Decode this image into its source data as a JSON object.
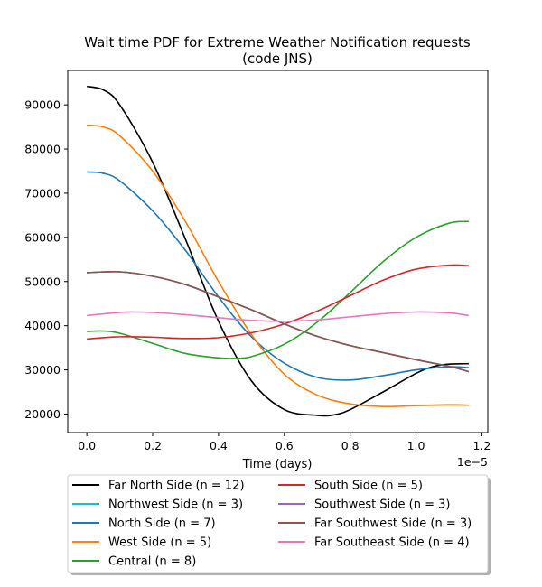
{
  "chart_data": {
    "type": "line",
    "title": "Wait time PDF for Extreme Weather Notification  requests",
    "subtitle": "(code JNS)",
    "xlabel": "Time (days)",
    "ylabel": "",
    "x_offset_text": "1e−5",
    "xlim": [
      -0.058,
      1.218
    ],
    "ylim": [
      15800,
      97800
    ],
    "xticks": [
      0.0,
      0.2,
      0.4,
      0.6,
      0.8,
      1.0,
      1.2
    ],
    "xtick_labels": [
      "0.0",
      "0.2",
      "0.4",
      "0.6",
      "0.8",
      "1.0",
      "1.2"
    ],
    "yticks": [
      20000,
      30000,
      40000,
      50000,
      60000,
      70000,
      80000,
      90000
    ],
    "ytick_labels": [
      "20000",
      "30000",
      "40000",
      "50000",
      "60000",
      "70000",
      "80000",
      "90000"
    ],
    "grid": false,
    "legend_position": "below plot, two columns",
    "series": [
      {
        "name": "Far North Side (n = 12)",
        "color": "#000000",
        "x": [
          0.0,
          0.05,
          0.1,
          0.2,
          0.3,
          0.4,
          0.5,
          0.6,
          0.7,
          0.75,
          0.8,
          0.9,
          1.0,
          1.05,
          1.1,
          1.16
        ],
        "y": [
          94200,
          93400,
          90000,
          77000,
          59500,
          41000,
          27500,
          21000,
          19700,
          19800,
          21000,
          25000,
          29200,
          30700,
          31300,
          31400
        ]
      },
      {
        "name": "Northwest Side (n = 3)",
        "color": "#17becf",
        "x": [
          0.0,
          0.1,
          0.2,
          0.3,
          0.4,
          0.5,
          0.6,
          0.7,
          0.8,
          0.9,
          1.0,
          1.1,
          1.16
        ],
        "y": [
          52000,
          52200,
          51200,
          49300,
          46500,
          43600,
          40400,
          37600,
          35500,
          33900,
          32300,
          30800,
          29600
        ]
      },
      {
        "name": "North Side (n = 7)",
        "color": "#1f77b4",
        "x": [
          0.0,
          0.05,
          0.1,
          0.2,
          0.3,
          0.4,
          0.5,
          0.6,
          0.7,
          0.8,
          0.9,
          1.0,
          1.1,
          1.16
        ],
        "y": [
          74800,
          74500,
          72800,
          66000,
          57000,
          46500,
          37500,
          31500,
          28300,
          27700,
          28700,
          30000,
          30700,
          30500
        ]
      },
      {
        "name": "West Side (n = 5)",
        "color": "#ff7f0e",
        "x": [
          0.0,
          0.05,
          0.1,
          0.2,
          0.3,
          0.4,
          0.5,
          0.6,
          0.7,
          0.8,
          0.9,
          1.0,
          1.1,
          1.16
        ],
        "y": [
          85400,
          85000,
          83000,
          75000,
          63500,
          50000,
          38000,
          29000,
          24300,
          22300,
          21700,
          21900,
          22100,
          22000
        ]
      },
      {
        "name": "Central (n = 8)",
        "color": "#2ca02c",
        "x": [
          0.0,
          0.05,
          0.1,
          0.2,
          0.3,
          0.4,
          0.45,
          0.5,
          0.6,
          0.7,
          0.8,
          0.9,
          1.0,
          1.1,
          1.16
        ],
        "y": [
          38700,
          38800,
          38300,
          36000,
          33700,
          32700,
          32600,
          33000,
          35800,
          40800,
          47500,
          54500,
          60000,
          63200,
          63600
        ]
      },
      {
        "name": "South Side (n = 5)",
        "color": "#d62728",
        "x": [
          0.0,
          0.1,
          0.2,
          0.3,
          0.4,
          0.5,
          0.6,
          0.7,
          0.8,
          0.9,
          1.0,
          1.1,
          1.16
        ],
        "y": [
          37000,
          37500,
          37400,
          37100,
          37300,
          38400,
          40400,
          43300,
          46800,
          50300,
          52800,
          53700,
          53600
        ]
      },
      {
        "name": "Southwest Side (n = 3)",
        "color": "#9467bd",
        "x": [
          0.0,
          0.1,
          0.2,
          0.3,
          0.4,
          0.5,
          0.6,
          0.7,
          0.8,
          0.9,
          1.0,
          1.1,
          1.16
        ],
        "y": [
          52000,
          52200,
          51200,
          49300,
          46500,
          43600,
          40400,
          37600,
          35500,
          33900,
          32300,
          30800,
          29600
        ]
      },
      {
        "name": "Far Southwest Side (n = 3)",
        "color": "#8c564b",
        "x": [
          0.0,
          0.1,
          0.2,
          0.3,
          0.4,
          0.5,
          0.6,
          0.7,
          0.8,
          0.9,
          1.0,
          1.1,
          1.16
        ],
        "y": [
          52000,
          52200,
          51200,
          49300,
          46500,
          43600,
          40400,
          37600,
          35500,
          33900,
          32300,
          30800,
          29600
        ]
      },
      {
        "name": "Far Southeast Side (n = 4)",
        "color": "#e377c2",
        "x": [
          0.0,
          0.1,
          0.15,
          0.2,
          0.3,
          0.4,
          0.5,
          0.6,
          0.7,
          0.8,
          0.9,
          1.0,
          1.1,
          1.16
        ],
        "y": [
          42300,
          43000,
          43100,
          43000,
          42500,
          41800,
          41200,
          41000,
          41300,
          42000,
          42700,
          43100,
          42900,
          42300
        ]
      }
    ]
  }
}
